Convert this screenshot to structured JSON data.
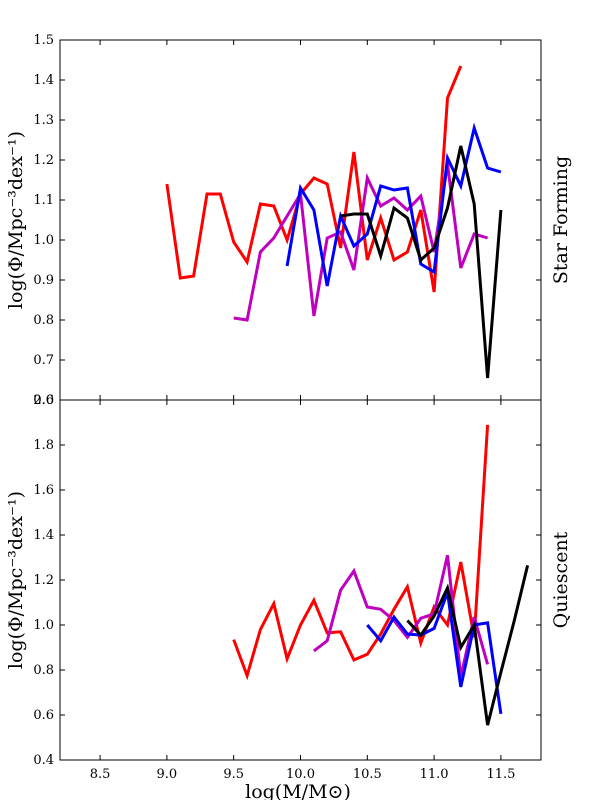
{
  "chart_data": [
    {
      "type": "line",
      "panel_label": "Star Forming",
      "ylabel": "log(Φ/Mpc⁻³dex⁻¹)",
      "xlim": [
        8.2,
        11.8
      ],
      "ylim": [
        0.6,
        1.5
      ],
      "xticks": [
        8.5,
        9.0,
        9.5,
        10.0,
        10.5,
        11.0,
        11.5
      ],
      "xtick_labels": [
        "8.5",
        "9.0",
        "9.5",
        "10.0",
        "10.5",
        "11.0",
        "11.5"
      ],
      "yticks": [
        0.6,
        0.7,
        0.8,
        0.9,
        1.0,
        1.1,
        1.2,
        1.3,
        1.4,
        1.5
      ],
      "ytick_labels": [
        "0.6",
        "0.7",
        "0.8",
        "0.9",
        "1.0",
        "1.1",
        "1.2",
        "1.3",
        "1.4",
        "1.5"
      ],
      "grid": false,
      "legend": "none",
      "series": [
        {
          "color": "#ff0000",
          "x": [
            9.0,
            9.1,
            9.2,
            9.3,
            9.4,
            9.5,
            9.6,
            9.7,
            9.8,
            9.9,
            10.0,
            10.1,
            10.2,
            10.3,
            10.4,
            10.5,
            10.6,
            10.7,
            10.8,
            10.9,
            11.0,
            11.1,
            11.2
          ],
          "y": [
            1.14,
            0.905,
            0.91,
            1.115,
            1.115,
            0.995,
            0.945,
            1.09,
            1.085,
            1.0,
            1.115,
            1.155,
            1.14,
            0.98,
            1.22,
            0.95,
            1.055,
            0.95,
            0.97,
            1.075,
            0.87,
            1.355,
            1.435
          ]
        },
        {
          "color": "#bf00bf",
          "x": [
            9.5,
            9.6,
            9.7,
            9.8,
            9.9,
            10.0,
            10.1,
            10.2,
            10.3,
            10.4,
            10.5,
            10.6,
            10.7,
            10.8,
            10.9,
            11.0,
            11.1,
            11.2,
            11.3,
            11.4
          ],
          "y": [
            0.805,
            0.8,
            0.97,
            1.005,
            1.06,
            1.115,
            0.81,
            1.005,
            1.02,
            0.925,
            1.155,
            1.085,
            1.105,
            1.075,
            1.11,
            0.97,
            1.19,
            0.93,
            1.015,
            1.005
          ]
        },
        {
          "color": "#0000ff",
          "x": [
            9.9,
            10.0,
            10.1,
            10.2,
            10.3,
            10.4,
            10.5,
            10.6,
            10.7,
            10.8,
            10.9,
            11.0,
            11.1,
            11.2,
            11.3,
            11.4,
            11.5
          ],
          "y": [
            0.935,
            1.13,
            1.075,
            0.885,
            1.06,
            0.985,
            1.015,
            1.135,
            1.125,
            1.13,
            0.94,
            0.92,
            1.205,
            1.135,
            1.28,
            1.18,
            1.17
          ]
        },
        {
          "color": "#000000",
          "x": [
            10.3,
            10.4,
            10.5,
            10.6,
            10.7,
            10.8,
            10.9,
            11.0,
            11.1,
            11.2,
            11.3,
            11.4,
            11.5
          ],
          "y": [
            1.06,
            1.065,
            1.065,
            0.96,
            1.08,
            1.055,
            0.95,
            0.98,
            1.08,
            1.235,
            1.09,
            0.655,
            1.075
          ]
        }
      ]
    },
    {
      "type": "line",
      "panel_label": "Quiescent",
      "xlabel": "log(M/M⊙)",
      "ylabel": "log(Φ/Mpc⁻³dex⁻¹)",
      "xlim": [
        8.2,
        11.8
      ],
      "ylim": [
        0.4,
        2.0
      ],
      "xticks": [
        8.5,
        9.0,
        9.5,
        10.0,
        10.5,
        11.0,
        11.5
      ],
      "xtick_labels": [
        "8.5",
        "9.0",
        "9.5",
        "10.0",
        "10.5",
        "11.0",
        "11.5"
      ],
      "yticks": [
        0.4,
        0.6,
        0.8,
        1.0,
        1.2,
        1.4,
        1.6,
        1.8,
        2.0
      ],
      "ytick_labels": [
        "0.4",
        "0.6",
        "0.8",
        "1.0",
        "1.2",
        "1.4",
        "1.6",
        "1.8",
        "2.0"
      ],
      "grid": false,
      "legend": "none",
      "series": [
        {
          "color": "#ff0000",
          "x": [
            9.5,
            9.6,
            9.7,
            9.8,
            9.9,
            10.0,
            10.1,
            10.2,
            10.3,
            10.4,
            10.5,
            10.6,
            10.7,
            10.8,
            10.9,
            11.0,
            11.1,
            11.2,
            11.3,
            11.4
          ],
          "y": [
            0.935,
            0.775,
            0.98,
            1.095,
            0.85,
            1.0,
            1.11,
            0.965,
            0.97,
            0.845,
            0.87,
            0.96,
            1.07,
            1.17,
            0.92,
            1.08,
            1.0,
            1.28,
            0.945,
            1.89
          ]
        },
        {
          "color": "#bf00bf",
          "x": [
            10.1,
            10.2,
            10.3,
            10.4,
            10.5,
            10.6,
            10.7,
            10.8,
            10.9,
            11.0,
            11.1,
            11.2,
            11.3,
            11.4
          ],
          "y": [
            0.885,
            0.93,
            1.155,
            1.24,
            1.08,
            1.07,
            1.02,
            0.945,
            1.03,
            1.05,
            1.31,
            0.77,
            1.035,
            0.825
          ]
        },
        {
          "color": "#0000ff",
          "x": [
            10.5,
            10.6,
            10.7,
            10.8,
            10.9,
            11.0,
            11.1,
            11.2,
            11.3,
            11.4,
            11.5
          ],
          "y": [
            1.0,
            0.93,
            1.035,
            0.96,
            0.955,
            0.985,
            1.145,
            0.725,
            1.0,
            1.01,
            0.605
          ]
        },
        {
          "color": "#000000",
          "x": [
            10.8,
            10.9,
            11.0,
            11.1,
            11.2,
            11.3,
            11.4,
            11.5,
            11.6,
            11.7
          ],
          "y": [
            1.02,
            0.955,
            1.04,
            1.165,
            0.9,
            1.0,
            0.555,
            0.79,
            1.02,
            1.265
          ]
        }
      ]
    }
  ]
}
